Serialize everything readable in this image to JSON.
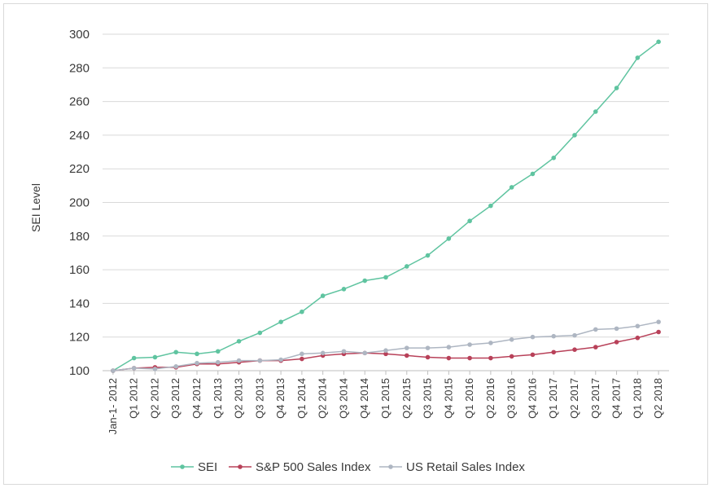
{
  "chart_data": {
    "type": "line",
    "ylabel": "SEI Level",
    "xlabel": "",
    "ylim": [
      100,
      300
    ],
    "yticks": [
      100,
      120,
      140,
      160,
      180,
      200,
      220,
      240,
      260,
      280,
      300
    ],
    "grid": "horizontal",
    "legend_position": "bottom",
    "categories": [
      "Jan-1- 2012",
      "Q1 2012",
      "Q2 2012",
      "Q3 2012",
      "Q4 2012",
      "Q1 2013",
      "Q2 2013",
      "Q3 2013",
      "Q4 2013",
      "Q1 2014",
      "Q2 2014",
      "Q3 2014",
      "Q4 2014",
      "Q1 2015",
      "Q2 2015",
      "Q3 2015",
      "Q4 2015",
      "Q1 2016",
      "Q2 2016",
      "Q3 2016",
      "Q4 2016",
      "Q1 2017",
      "Q2 2017",
      "Q3 2017",
      "Q4 2017",
      "Q1 2018",
      "Q2 2018"
    ],
    "series": [
      {
        "name": "SEI",
        "color": "#5fc4a0",
        "values": [
          100,
          107.5,
          108,
          111,
          110,
          111.5,
          117.5,
          122.5,
          129,
          135,
          144.5,
          148.5,
          153.5,
          155.5,
          162,
          168.5,
          178.5,
          189,
          198,
          209,
          217,
          226.5,
          240,
          254,
          268,
          286,
          295.5
        ]
      },
      {
        "name": "S&P 500 Sales Index",
        "color": "#b84159",
        "values": [
          100,
          101.5,
          102,
          102,
          104,
          104,
          105,
          106,
          106,
          107,
          109,
          110,
          110.5,
          110,
          109,
          108,
          107.5,
          107.5,
          107.5,
          108.5,
          109.5,
          111,
          112.5,
          114,
          117,
          119.5,
          123
        ]
      },
      {
        "name": "US Retail Sales Index",
        "color": "#aeb6c2",
        "values": [
          100,
          101.5,
          101,
          102.5,
          104.5,
          105,
          106,
          106,
          106.5,
          110,
          110.5,
          111.5,
          110.5,
          112,
          113.5,
          113.5,
          114,
          115.5,
          116.5,
          118.5,
          120,
          120.5,
          121,
          124.5,
          125,
          126.5,
          129
        ]
      }
    ]
  }
}
